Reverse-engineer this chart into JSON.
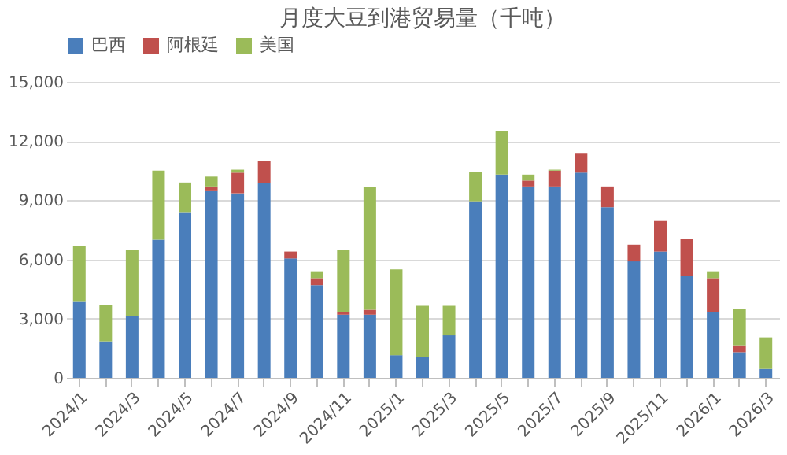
{
  "chart_data": {
    "type": "bar",
    "title": "月度大豆到港贸易量（千吨）",
    "stacked": true,
    "categories": [
      "2024/1",
      null,
      "2024/3",
      null,
      "2024/5",
      null,
      "2024/7",
      null,
      "2024/9",
      null,
      "2024/11",
      null,
      "2025/1",
      null,
      "2025/3",
      null,
      "2025/5",
      null,
      "2025/7",
      null,
      "2025/9",
      null,
      "2025/11",
      null,
      "2026/1",
      null,
      "2026/3"
    ],
    "series": [
      {
        "name": "巴西",
        "color": "#4a7ebb",
        "values": [
          3850,
          1850,
          3150,
          7000,
          8400,
          9500,
          9350,
          9850,
          6050,
          4700,
          3200,
          3200,
          1150,
          1050,
          2150,
          8950,
          10300,
          9700,
          9700,
          10400,
          8650,
          5900,
          6400,
          5150,
          3350,
          1300,
          450
        ]
      },
      {
        "name": "阿根廷",
        "color": "#c0504d",
        "values": [
          null,
          null,
          null,
          null,
          null,
          200,
          1050,
          1150,
          350,
          350,
          150,
          250,
          null,
          null,
          null,
          null,
          null,
          300,
          800,
          1000,
          1050,
          850,
          1550,
          1900,
          1700,
          350,
          null
        ]
      },
      {
        "name": "美国",
        "color": "#9bbb59",
        "values": [
          2850,
          1850,
          3350,
          3500,
          1500,
          500,
          150,
          null,
          null,
          350,
          3150,
          6200,
          4350,
          2600,
          1500,
          1500,
          2200,
          300,
          50,
          null,
          null,
          null,
          null,
          null,
          350,
          1850,
          1600
        ]
      }
    ],
    "ylim": [
      0,
      15000
    ],
    "yticks": [
      0,
      {
        "value": 3000,
        "label": "3,000"
      },
      {
        "value": 6000,
        "label": "6,000"
      },
      {
        "value": 9000,
        "label": "9,000"
      },
      {
        "value": 12000,
        "label": "12,000"
      },
      {
        "value": 15000,
        "label": "15,000"
      }
    ],
    "grid": "y",
    "legend": "top"
  }
}
